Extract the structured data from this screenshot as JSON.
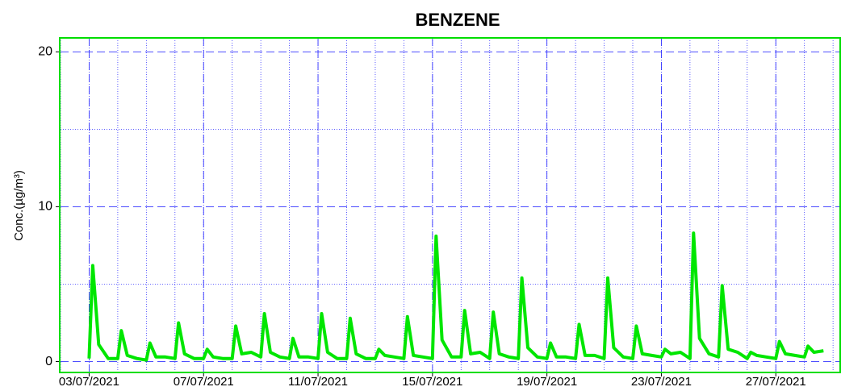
{
  "chart_data": {
    "type": "line",
    "title": "BENZENE",
    "y_label": "Conc.(µg/m³)",
    "x": [
      "03/07/2021 00:00",
      "03/07/2021 03:00",
      "03/07/2021 08:00",
      "03/07/2021 16:00",
      "04/07/2021 00:00",
      "04/07/2021 03:00",
      "04/07/2021 08:00",
      "04/07/2021 16:00",
      "05/07/2021 00:00",
      "05/07/2021 03:00",
      "05/07/2021 08:00",
      "05/07/2021 16:00",
      "06/07/2021 00:00",
      "06/07/2021 03:00",
      "06/07/2021 08:00",
      "06/07/2021 16:00",
      "07/07/2021 00:00",
      "07/07/2021 03:00",
      "07/07/2021 08:00",
      "07/07/2021 16:00",
      "08/07/2021 00:00",
      "08/07/2021 03:00",
      "08/07/2021 08:00",
      "08/07/2021 16:00",
      "09/07/2021 00:00",
      "09/07/2021 03:00",
      "09/07/2021 08:00",
      "09/07/2021 16:00",
      "10/07/2021 00:00",
      "10/07/2021 03:00",
      "10/07/2021 08:00",
      "10/07/2021 16:00",
      "11/07/2021 00:00",
      "11/07/2021 03:00",
      "11/07/2021 08:00",
      "11/07/2021 16:00",
      "12/07/2021 00:00",
      "12/07/2021 03:00",
      "12/07/2021 08:00",
      "12/07/2021 16:00",
      "13/07/2021 00:00",
      "13/07/2021 03:00",
      "13/07/2021 08:00",
      "13/07/2021 16:00",
      "14/07/2021 00:00",
      "14/07/2021 03:00",
      "14/07/2021 08:00",
      "14/07/2021 16:00",
      "15/07/2021 00:00",
      "15/07/2021 03:00",
      "15/07/2021 08:00",
      "15/07/2021 16:00",
      "16/07/2021 00:00",
      "16/07/2021 03:00",
      "16/07/2021 08:00",
      "16/07/2021 16:00",
      "17/07/2021 00:00",
      "17/07/2021 03:00",
      "17/07/2021 08:00",
      "17/07/2021 16:00",
      "18/07/2021 00:00",
      "18/07/2021 03:00",
      "18/07/2021 08:00",
      "18/07/2021 16:00",
      "19/07/2021 00:00",
      "19/07/2021 03:00",
      "19/07/2021 08:00",
      "19/07/2021 16:00",
      "20/07/2021 00:00",
      "20/07/2021 03:00",
      "20/07/2021 08:00",
      "20/07/2021 16:00",
      "21/07/2021 00:00",
      "21/07/2021 03:00",
      "21/07/2021 08:00",
      "21/07/2021 16:00",
      "22/07/2021 00:00",
      "22/07/2021 03:00",
      "22/07/2021 08:00",
      "22/07/2021 16:00",
      "23/07/2021 00:00",
      "23/07/2021 03:00",
      "23/07/2021 08:00",
      "23/07/2021 16:00",
      "24/07/2021 00:00",
      "24/07/2021 03:00",
      "24/07/2021 08:00",
      "24/07/2021 16:00",
      "25/07/2021 00:00",
      "25/07/2021 03:00",
      "25/07/2021 08:00",
      "25/07/2021 16:00",
      "26/07/2021 00:00",
      "26/07/2021 03:00",
      "26/07/2021 08:00",
      "26/07/2021 16:00",
      "27/07/2021 00:00",
      "27/07/2021 03:00",
      "27/07/2021 08:00",
      "27/07/2021 16:00",
      "28/07/2021 00:00",
      "28/07/2021 03:00",
      "28/07/2021 08:00",
      "28/07/2021 16:00"
    ],
    "series": [
      {
        "color": "#00e600",
        "values": [
          0.2,
          6.2,
          1.1,
          0.2,
          0.2,
          2.0,
          0.4,
          0.2,
          0.1,
          1.2,
          0.3,
          0.3,
          0.2,
          2.5,
          0.5,
          0.2,
          0.2,
          0.8,
          0.3,
          0.2,
          0.2,
          2.3,
          0.5,
          0.6,
          0.3,
          3.1,
          0.6,
          0.3,
          0.2,
          1.5,
          0.3,
          0.3,
          0.2,
          3.1,
          0.6,
          0.2,
          0.2,
          2.8,
          0.5,
          0.2,
          0.2,
          0.8,
          0.4,
          0.3,
          0.2,
          2.9,
          0.4,
          0.3,
          0.2,
          8.1,
          1.4,
          0.3,
          0.3,
          3.3,
          0.5,
          0.6,
          0.2,
          3.2,
          0.5,
          0.3,
          0.2,
          5.4,
          0.9,
          0.3,
          0.2,
          1.2,
          0.3,
          0.3,
          0.2,
          2.4,
          0.4,
          0.4,
          0.2,
          5.4,
          0.9,
          0.3,
          0.2,
          2.3,
          0.5,
          0.4,
          0.3,
          0.8,
          0.5,
          0.6,
          0.2,
          8.3,
          1.5,
          0.5,
          0.3,
          4.9,
          0.8,
          0.6,
          0.2,
          0.6,
          0.4,
          0.3,
          0.2,
          1.3,
          0.5,
          0.4,
          0.3,
          1.0,
          0.6,
          0.7
        ]
      }
    ],
    "xlim": [
      "02/07/2021 00:00",
      "29/07/2021 06:00"
    ],
    "xticks": [
      "03/07/2021",
      "07/07/2021",
      "11/07/2021",
      "15/07/2021",
      "19/07/2021",
      "23/07/2021",
      "27/07/2021"
    ],
    "ylim": [
      -0.7,
      20.9
    ],
    "yticks": [
      0,
      10,
      20
    ],
    "grid": true,
    "frame_color": "#00dd00",
    "grid_color": "#3333ff"
  }
}
